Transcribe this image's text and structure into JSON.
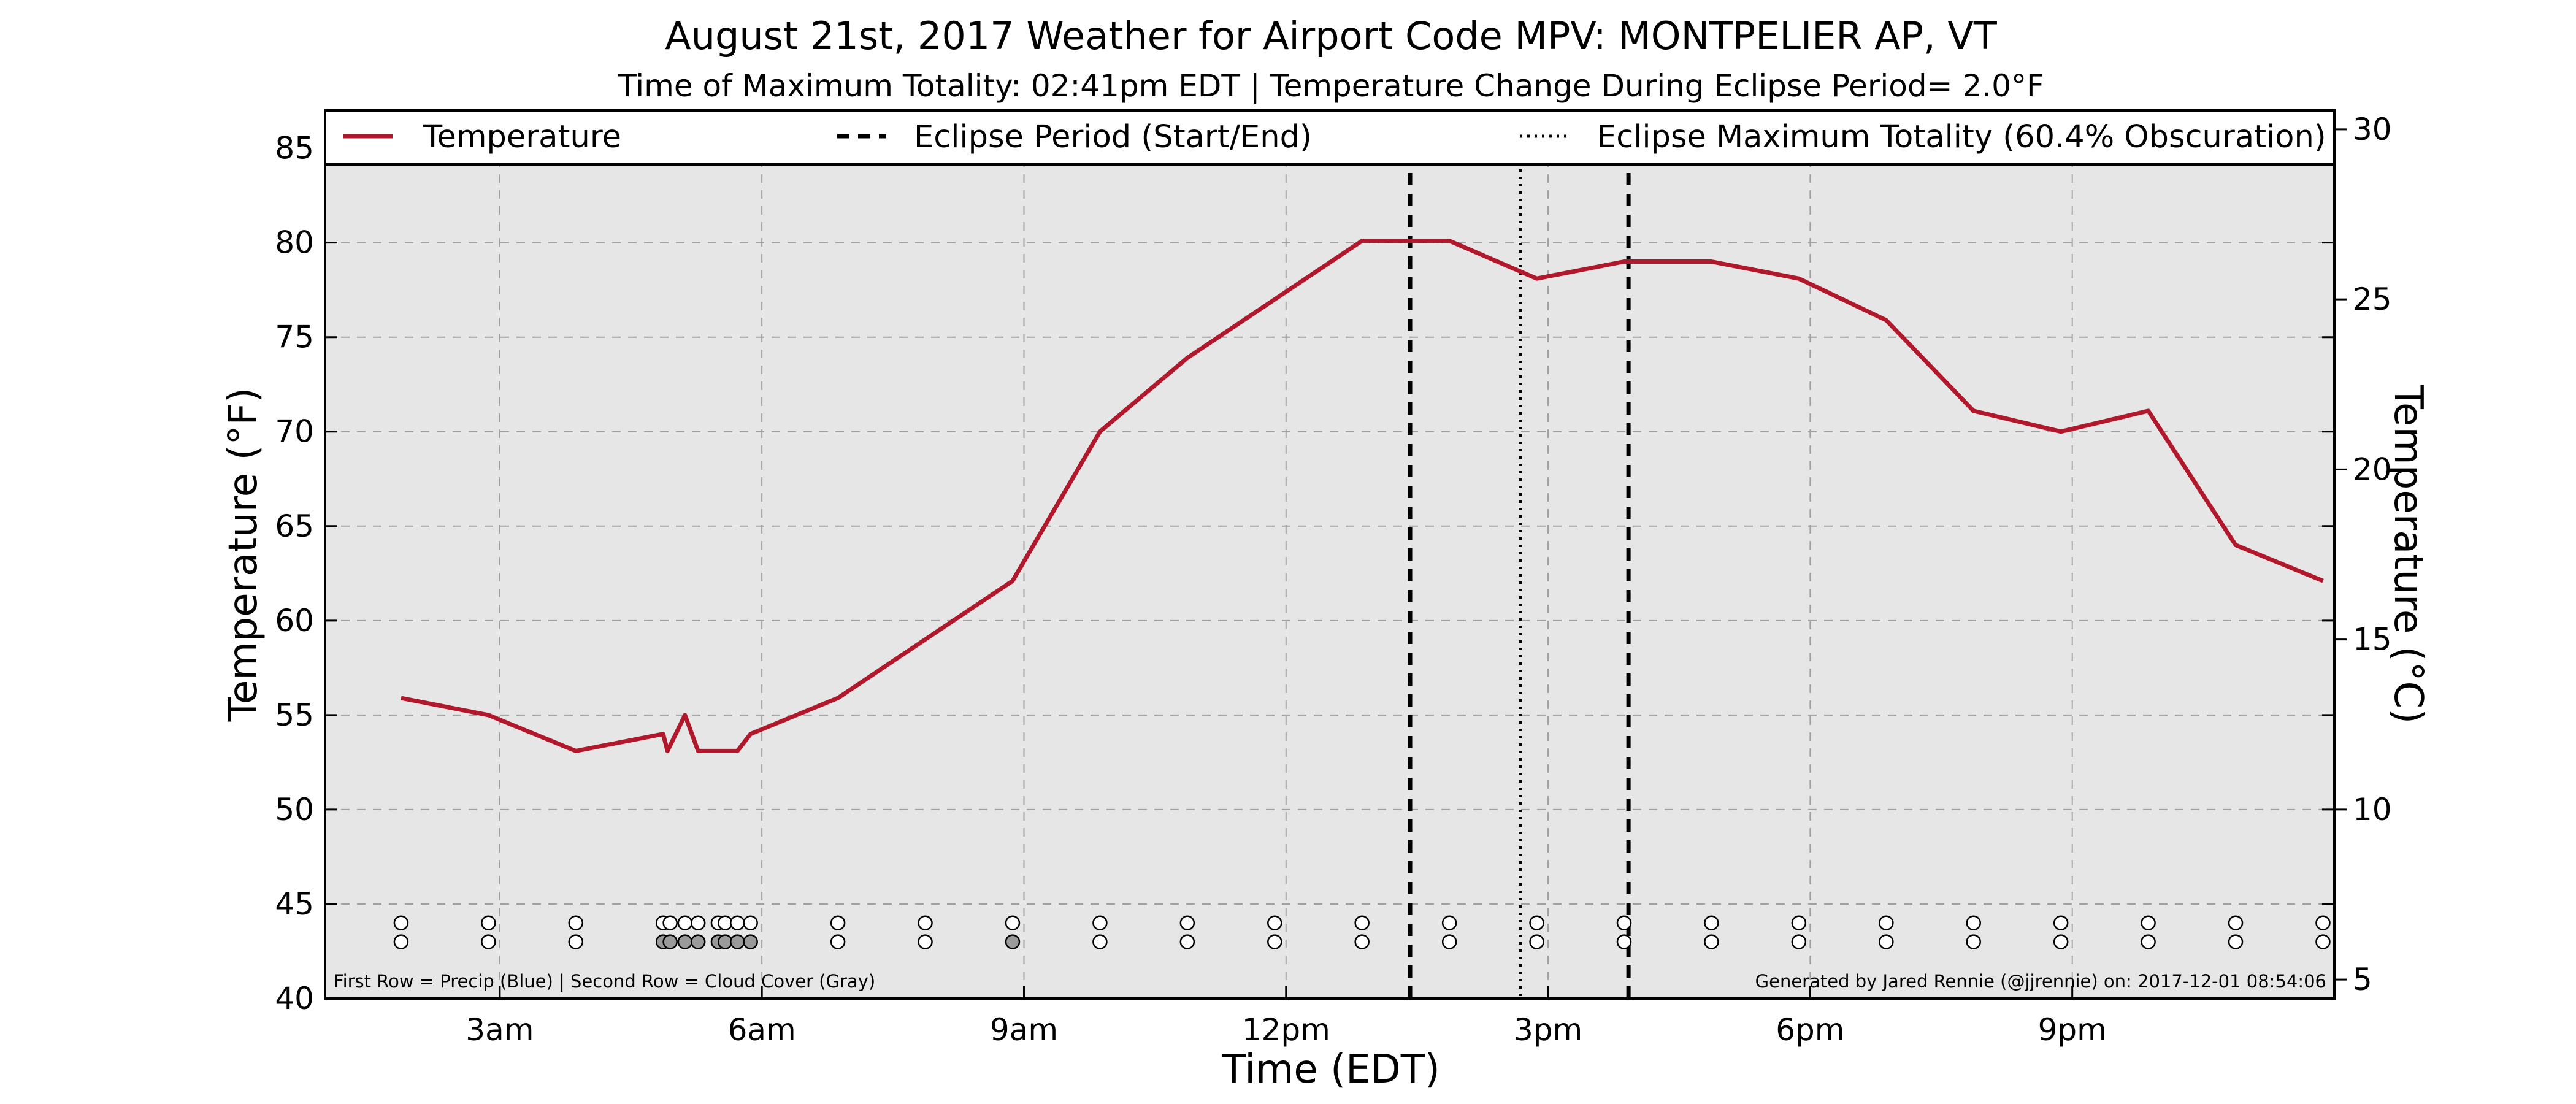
{
  "chart_data": {
    "type": "line",
    "title": "August 21st, 2017 Weather for Airport Code MPV: MONTPELIER AP, VT",
    "subtitle": "Time of Maximum Totality: 02:41pm EDT | Temperature Change During Eclipse Period= 2.0°F",
    "xlabel": "Time (EDT)",
    "ylabel": "Temperature (°F)",
    "ylabel_right": "Temperature (°C)",
    "xlim": [
      1.0,
      24.0
    ],
    "ylim": [
      40,
      87
    ],
    "ylim_right_celsius": [
      4.444,
      30.556
    ],
    "x_ticks": [
      {
        "x": 3,
        "label": "3am"
      },
      {
        "x": 6,
        "label": "6am"
      },
      {
        "x": 9,
        "label": "9am"
      },
      {
        "x": 12,
        "label": "12pm"
      },
      {
        "x": 15,
        "label": "3pm"
      },
      {
        "x": 18,
        "label": "6pm"
      },
      {
        "x": 21,
        "label": "9pm"
      }
    ],
    "y_ticks": [
      40,
      45,
      50,
      55,
      60,
      65,
      70,
      75,
      80,
      85
    ],
    "y_ticks_right": [
      5,
      10,
      15,
      20,
      25,
      30
    ],
    "grid": true,
    "background": "#e6e6e6",
    "series": [
      {
        "name": "Temperature",
        "color": "#b2182b",
        "x": [
          1.87,
          2.87,
          3.87,
          4.87,
          4.92,
          5.12,
          5.27,
          5.52,
          5.72,
          5.87,
          6.87,
          7.87,
          8.87,
          9.87,
          10.87,
          11.87,
          12.87,
          13.87,
          14.87,
          15.87,
          16.87,
          17.87,
          18.87,
          19.87,
          20.87,
          21.87,
          22.87,
          23.87
        ],
        "y": [
          55.9,
          55.0,
          53.1,
          54.0,
          53.1,
          55.0,
          53.1,
          53.1,
          53.1,
          54.0,
          55.9,
          59.0,
          62.1,
          70.0,
          73.9,
          77.0,
          80.1,
          80.1,
          78.1,
          79.0,
          79.0,
          78.1,
          75.9,
          71.1,
          70.0,
          71.1,
          64.0,
          62.1
        ]
      }
    ],
    "legend": {
      "placement": "top",
      "entries": [
        {
          "label": "Temperature",
          "style": "solid",
          "color": "#b2182b"
        },
        {
          "label": "Eclipse Period (Start/End)",
          "style": "dashed",
          "color": "#000000"
        },
        {
          "label": "Eclipse Maximum Totality (60.4% Obscuration)",
          "style": "dotted",
          "color": "#000000"
        }
      ]
    },
    "eclipse": {
      "start_x": 13.42,
      "max_x": 14.68,
      "end_x": 15.92
    },
    "markers": {
      "precip_row_y": 44,
      "cloud_row_y": 43,
      "precip_color": "#ffffff",
      "cloud_colors": {
        "clear": "#ffffff",
        "partly": "#9a9a9a",
        "cloudy": "#707070"
      },
      "points": [
        {
          "x": 1.87,
          "cloud": "clear"
        },
        {
          "x": 2.87,
          "cloud": "clear"
        },
        {
          "x": 3.87,
          "cloud": "clear"
        },
        {
          "x": 4.87,
          "cloud": "partly"
        },
        {
          "x": 4.95,
          "cloud": "partly"
        },
        {
          "x": 5.12,
          "cloud": "partly"
        },
        {
          "x": 5.27,
          "cloud": "partly"
        },
        {
          "x": 5.5,
          "cloud": "partly"
        },
        {
          "x": 5.58,
          "cloud": "partly"
        },
        {
          "x": 5.72,
          "cloud": "partly"
        },
        {
          "x": 5.87,
          "cloud": "partly"
        },
        {
          "x": 6.87,
          "cloud": "clear"
        },
        {
          "x": 7.87,
          "cloud": "clear"
        },
        {
          "x": 8.87,
          "cloud": "partly"
        },
        {
          "x": 9.87,
          "cloud": "clear"
        },
        {
          "x": 10.87,
          "cloud": "clear"
        },
        {
          "x": 11.87,
          "cloud": "clear"
        },
        {
          "x": 12.87,
          "cloud": "clear"
        },
        {
          "x": 13.87,
          "cloud": "clear"
        },
        {
          "x": 14.87,
          "cloud": "clear"
        },
        {
          "x": 15.87,
          "cloud": "clear"
        },
        {
          "x": 16.87,
          "cloud": "clear"
        },
        {
          "x": 17.87,
          "cloud": "clear"
        },
        {
          "x": 18.87,
          "cloud": "clear"
        },
        {
          "x": 19.87,
          "cloud": "clear"
        },
        {
          "x": 20.87,
          "cloud": "clear"
        },
        {
          "x": 21.87,
          "cloud": "clear"
        },
        {
          "x": 22.87,
          "cloud": "clear"
        },
        {
          "x": 23.87,
          "cloud": "clear"
        }
      ]
    },
    "footnote_left": "First Row = Precip (Blue) | Second Row = Cloud Cover (Gray)",
    "footnote_right": "Generated by Jared Rennie (@jjrennie) on: 2017-12-01 08:54:06"
  }
}
